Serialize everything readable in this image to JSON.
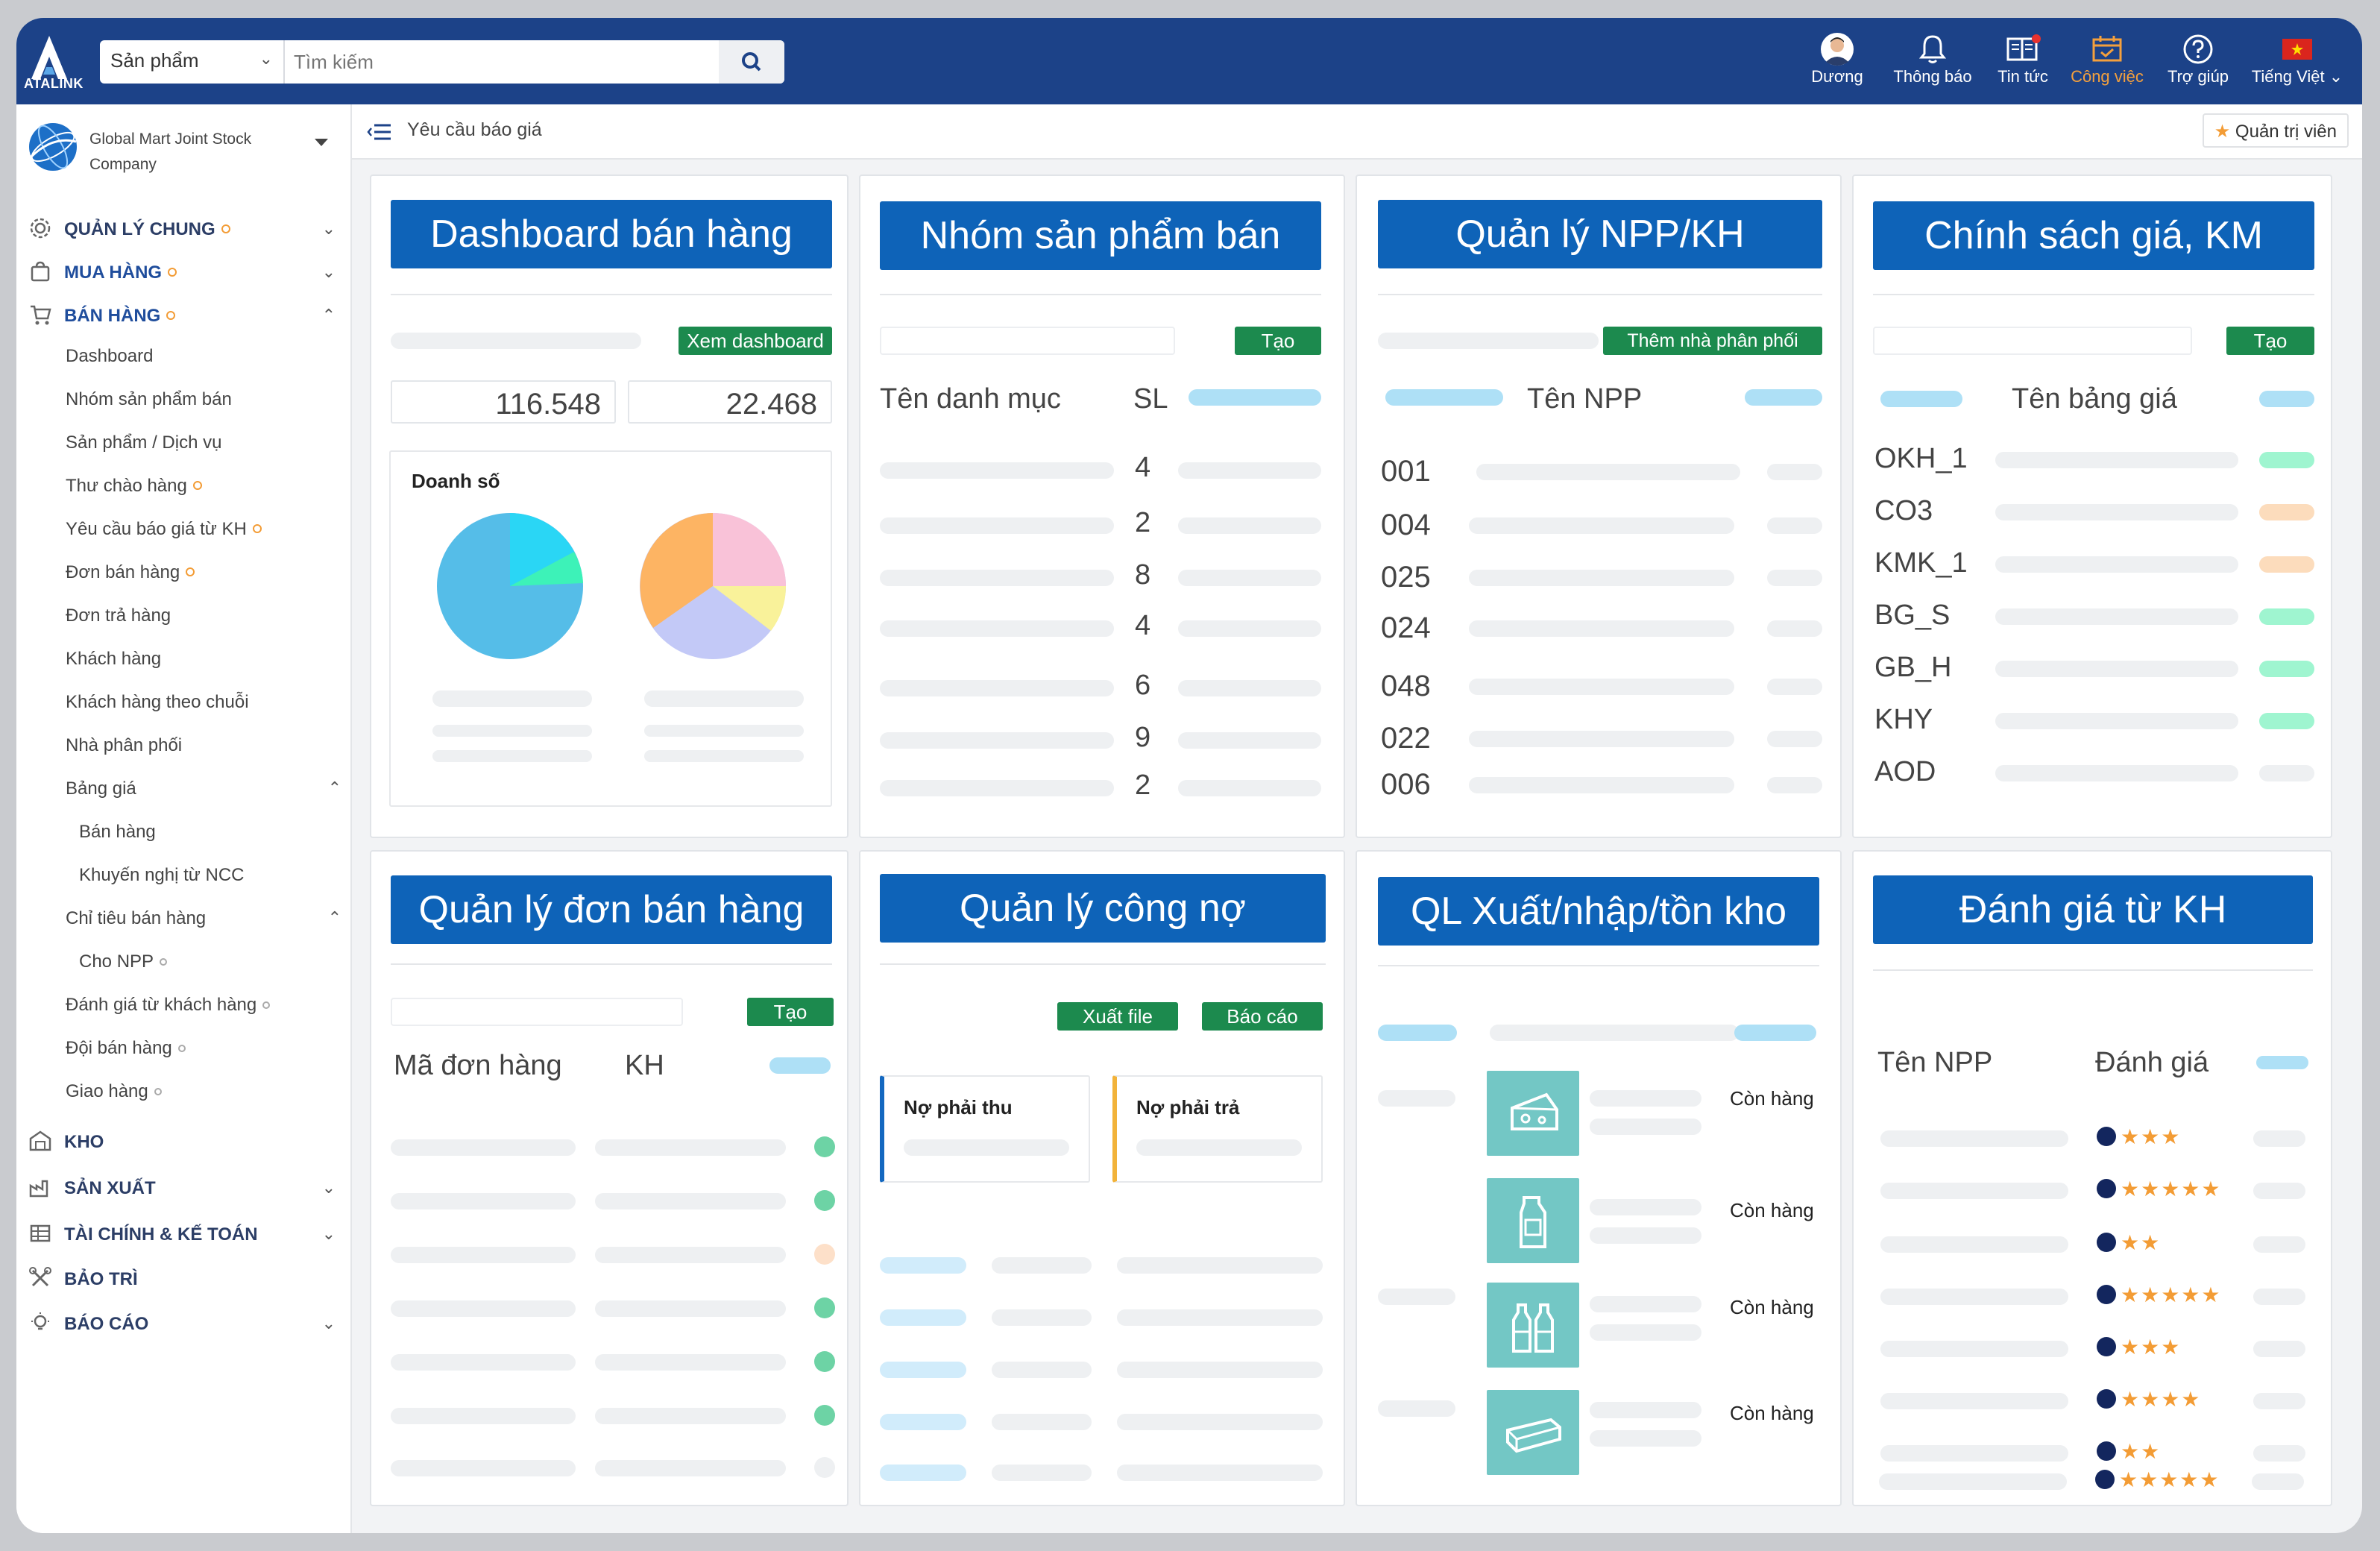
{
  "topbar": {
    "logo_text": "ATALINK",
    "search_category": "Sản phẩm",
    "search_placeholder": "Tìm kiếm",
    "user_name": "Dương",
    "notifications": "Thông báo",
    "news": "Tin tức",
    "tasks": "Công việc",
    "help": "Trợ giúp",
    "language": "Tiếng Việt"
  },
  "sidebar": {
    "company_line1": "Global Mart Joint Stock",
    "company_line2": "Company",
    "groups": [
      {
        "label": "QUẢN LÝ CHUNG"
      },
      {
        "label": "MUA HÀNG"
      },
      {
        "label": "BÁN HÀNG"
      },
      {
        "label": "KHO"
      },
      {
        "label": "SẢN XUẤT"
      },
      {
        "label": "TÀI CHÍNH & KẾ TOÁN"
      },
      {
        "label": "BẢO TRÌ"
      },
      {
        "label": "BÁO CÁO"
      }
    ],
    "sales_items": [
      "Dashboard",
      "Nhóm sản phẩm bán",
      "Sản phẩm / Dịch vụ",
      "Thư chào hàng",
      "Yêu cầu báo giá từ KH",
      "Đơn bán hàng",
      "Đơn trả hàng",
      "Khách hàng",
      "Khách hàng theo chuỗi",
      "Nhà phân phối",
      "Bảng giá",
      "Bán hàng",
      "Khuyến nghị từ NCC",
      "Chỉ tiêu bán hàng",
      "Cho NPP",
      "Đánh giá từ khách hàng",
      "Đội bán hàng",
      "Giao hàng"
    ]
  },
  "breadcrumb": {
    "current": "Yêu cầu báo giá",
    "role": "Quản trị viên"
  },
  "cards": {
    "dashboard": {
      "title": "Dashboard bán hàng",
      "button": "Xem dashboard",
      "stat1": "116.548",
      "stat2": "22.468",
      "chart_label": "Doanh số"
    },
    "product_group": {
      "title": "Nhóm sản phẩm bán",
      "button": "Tạo",
      "col1": "Tên danh mục",
      "col2": "SL",
      "counts": [
        "4",
        "2",
        "8",
        "4",
        "6",
        "9",
        "2"
      ]
    },
    "distributor": {
      "title": "Quản lý NPP/KH",
      "button": "Thêm nhà phân phối",
      "col": "Tên NPP",
      "codes": [
        "001",
        "004",
        "025",
        "024",
        "048",
        "022",
        "006"
      ]
    },
    "pricing": {
      "title": "Chính sách giá, KM",
      "button": "Tạo",
      "col": "Tên bảng giá",
      "codes": [
        "OKH_1",
        "CO3",
        "KMK_1",
        "BG_S",
        "GB_H",
        "KHY",
        "AOD"
      ]
    },
    "orders": {
      "title": "Quản lý đơn bán hàng",
      "button": "Tạo",
      "col1": "Mã đơn hàng",
      "col2": "KH"
    },
    "debt": {
      "title": "Quản lý công nợ",
      "button1": "Xuất file",
      "button2": "Báo cáo",
      "receivable": "Nợ phải thu",
      "payable": "Nợ phải trả"
    },
    "inventory": {
      "title": "QL Xuất/nhập/tồn kho",
      "status": [
        "Còn hàng",
        "Còn hàng",
        "Còn hàng",
        "Còn hàng"
      ]
    },
    "reviews": {
      "title": "Đánh giá từ KH",
      "col1": "Tên NPP",
      "col2": "Đánh giá",
      "stars": [
        3,
        5,
        2,
        5,
        3,
        4,
        2,
        5
      ]
    }
  },
  "colors": {
    "accent": "#0e63b8",
    "topbar": "#1c4288",
    "green": "#1c8a4e",
    "star": "#f39c35"
  }
}
